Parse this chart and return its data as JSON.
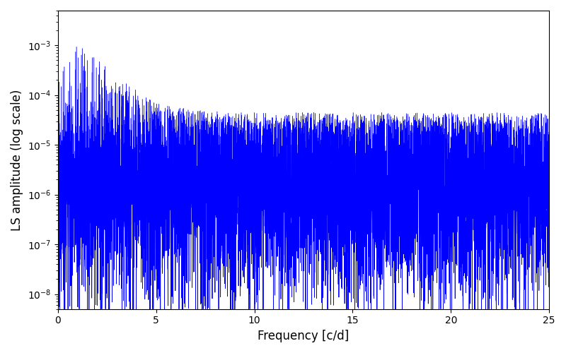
{
  "title": "",
  "xlabel": "Frequency [c/d]",
  "ylabel": "LS amplitude (log scale)",
  "xlim": [
    0,
    25
  ],
  "ylim": [
    5e-09,
    0.005
  ],
  "line_color": "#0000FF",
  "line_width": 0.3,
  "background_color": "#ffffff",
  "num_points": 3000,
  "seed": 42,
  "freq_max": 25.0
}
